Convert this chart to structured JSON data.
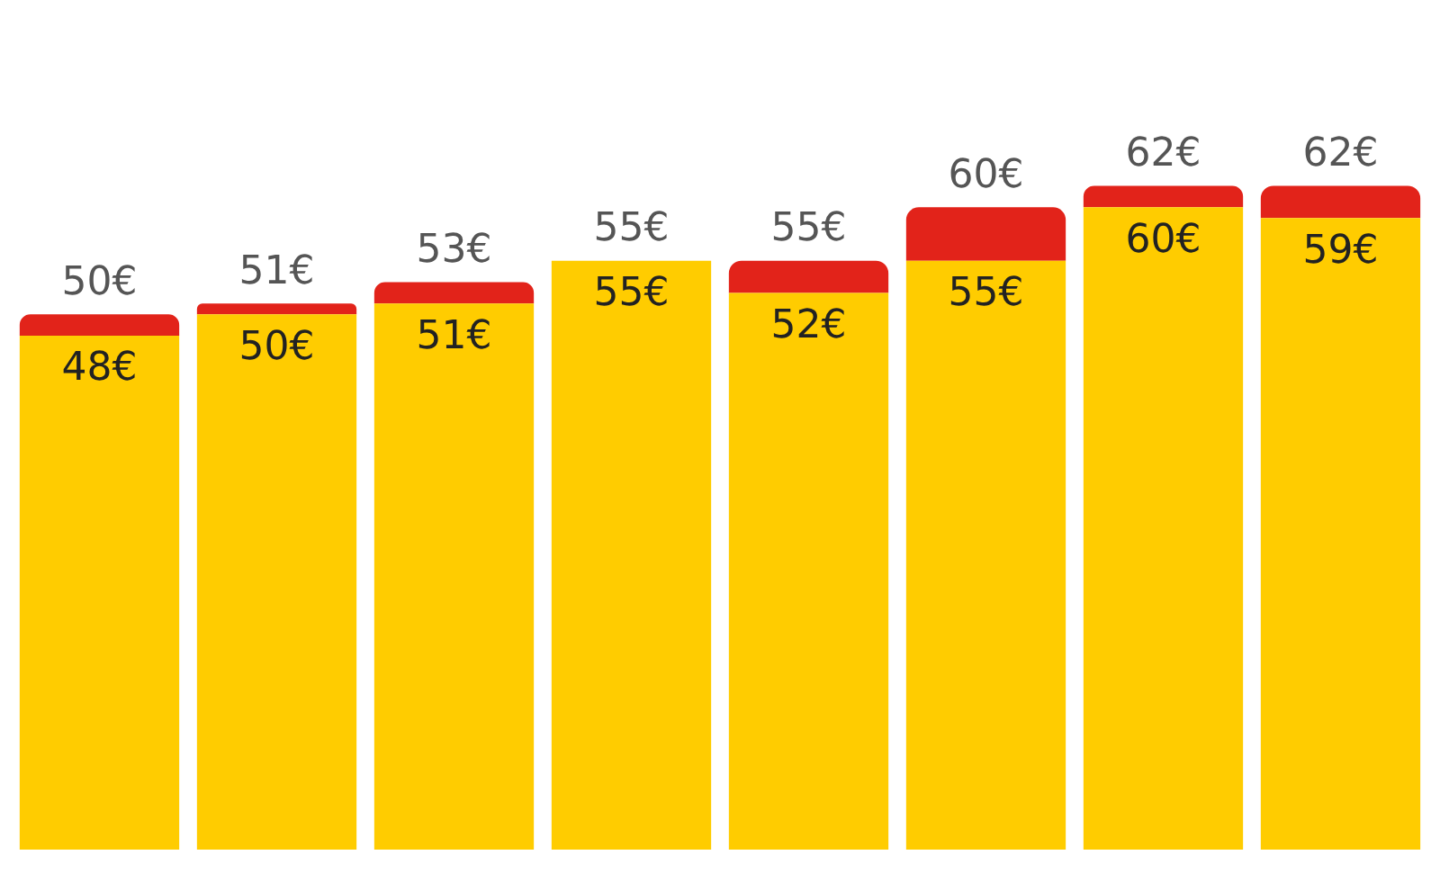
{
  "chart_data": {
    "type": "bar",
    "stacked": true,
    "categories": [
      null,
      null,
      null,
      null,
      null,
      null,
      null,
      null
    ],
    "series": [
      {
        "color": "#ffcc00",
        "values": [
          48,
          50,
          51,
          55,
          52,
          55,
          60,
          59
        ],
        "value_labels": [
          "48€",
          "50€",
          "51€",
          "55€",
          "52€",
          "55€",
          "60€",
          "59€"
        ]
      },
      {
        "color": "#e2231a",
        "values": [
          2,
          1,
          2,
          0,
          3,
          5,
          2,
          3
        ]
      }
    ],
    "totals": [
      "50€",
      "51€",
      "53€",
      "55€",
      "55€",
      "60€",
      "62€",
      "62€"
    ],
    "legend": false
  }
}
